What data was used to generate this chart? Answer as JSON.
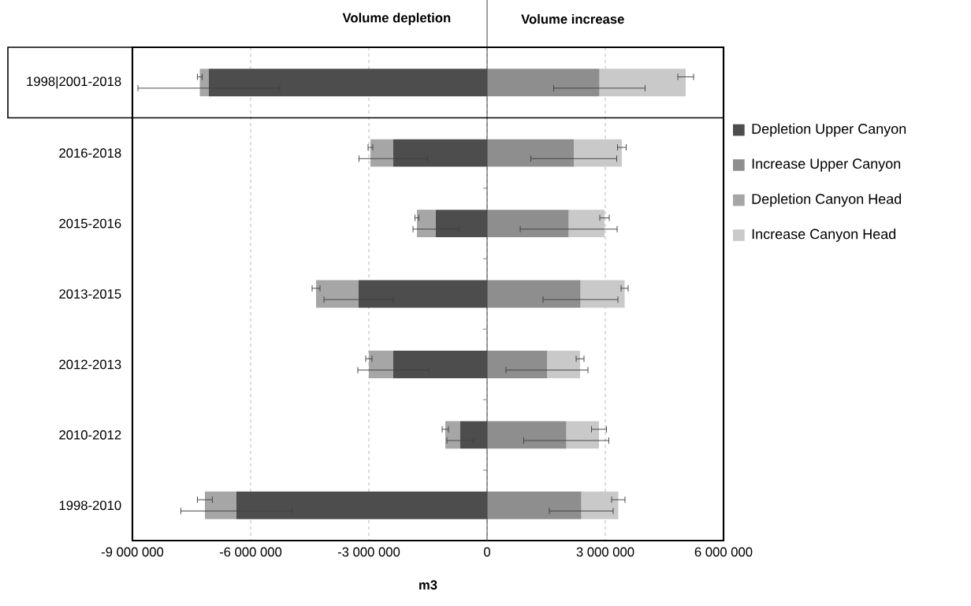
{
  "chart_data": {
    "type": "bar",
    "orientation": "horizontal",
    "stacked": true,
    "categories": [
      "1998|2001-2018",
      "2016-2018",
      "2015-2016",
      "2013-2015",
      "2012-2013",
      "2010-2012",
      "1998-2010"
    ],
    "series": [
      {
        "name": "Depletion Upper Canyon",
        "color": "#4d4d4d",
        "values": [
          -7060000,
          -2380000,
          -1300000,
          -3260000,
          -2380000,
          -680000,
          -6360000
        ],
        "errors": [
          1800000,
          870000,
          580000,
          880000,
          900000,
          340000,
          1410000
        ]
      },
      {
        "name": "Increase Upper Canyon",
        "color": "#8e8e8e",
        "values": [
          2850000,
          2200000,
          2070000,
          2370000,
          1520000,
          2010000,
          2390000
        ],
        "errors": [
          1160000,
          1090000,
          1230000,
          950000,
          1040000,
          1080000,
          810000
        ]
      },
      {
        "name": "Depletion Canyon Head",
        "color": "#a6a6a6",
        "values": [
          -230000,
          -580000,
          -480000,
          -1080000,
          -620000,
          -380000,
          -800000
        ],
        "errors": [
          60000,
          60000,
          50000,
          100000,
          80000,
          80000,
          190000
        ]
      },
      {
        "name": "Increase Canyon Head",
        "color": "#c9c9c9",
        "values": [
          2190000,
          1220000,
          910000,
          1120000,
          840000,
          830000,
          940000
        ],
        "errors": [
          200000,
          110000,
          120000,
          90000,
          100000,
          190000,
          170000
        ]
      }
    ],
    "xlim": [
      -9000000,
      6000000
    ],
    "xticks": [
      {
        "value": -9000000,
        "label": "-9 000 000"
      },
      {
        "value": -6000000,
        "label": "-6 000 000"
      },
      {
        "value": -3000000,
        "label": "-3 000 000"
      },
      0,
      {
        "value": 3000000,
        "label": "3 000 000"
      },
      {
        "value": 6000000,
        "label": "6 000 000"
      }
    ],
    "xlabel": "m3",
    "annotations": [
      "Volume depletion",
      "Volume increase"
    ],
    "grid": "x",
    "legend": "right"
  }
}
